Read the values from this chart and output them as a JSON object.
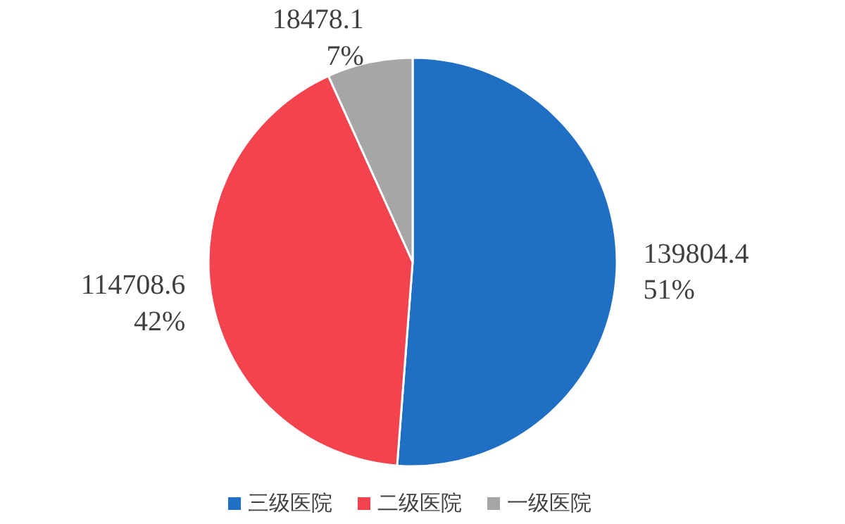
{
  "chart_data": {
    "type": "pie",
    "categories": [
      "三级医院",
      "二级医院",
      "一级医院"
    ],
    "values": [
      139804.4,
      114708.6,
      18478.1
    ],
    "colors": [
      "#1f6fc4",
      "#f2434f",
      "#a6a6a6"
    ],
    "value_labels": [
      "139804.4\n51%",
      "114708.6\n42%",
      "18478.1\n7%"
    ],
    "legend": "bottom"
  }
}
